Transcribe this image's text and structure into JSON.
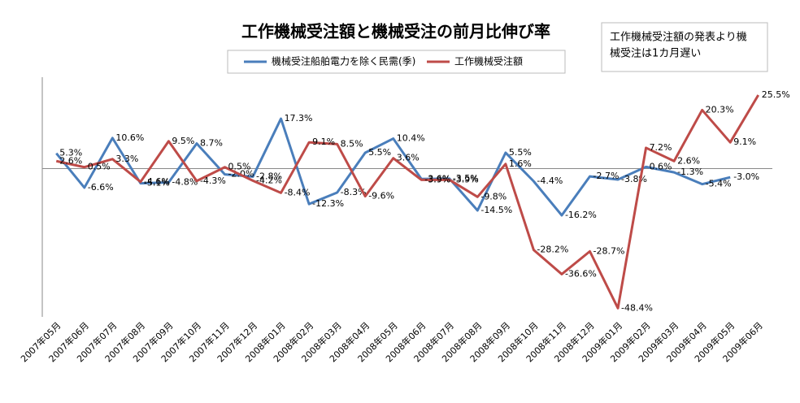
{
  "chart_data": {
    "type": "line",
    "title": "工作機械受注額と機械受注の前月比伸び率",
    "note": [
      "工作機械受注額の発表より機",
      "械受注は1カ月遅い"
    ],
    "categories": [
      "2007年05月",
      "2007年06月",
      "2007年07月",
      "2007年08月",
      "2007年09月",
      "2007年10月",
      "2007年11月",
      "2007年12月",
      "2008年01月",
      "2008年02月",
      "2008年03月",
      "2008年04月",
      "2008年05月",
      "2008年06月",
      "2008年07月",
      "2008年08月",
      "2008年09月",
      "2008年10月",
      "2008年11月",
      "2008年12月",
      "2009年01月",
      "2009年02月",
      "2009年03月",
      "2009年04月",
      "2009年05月",
      "2009年06月"
    ],
    "series": [
      {
        "name": "機械受注船舶電力を除く民需(季)",
        "color": "#4a7ebb",
        "values": [
          5.3,
          -6.6,
          10.6,
          -5.1,
          -4.8,
          8.7,
          -2.0,
          -2.8,
          17.3,
          -12.3,
          -8.3,
          5.5,
          10.4,
          -3.6,
          -3.5,
          -14.5,
          5.5,
          -4.4,
          -16.2,
          -2.7,
          -3.8,
          0.6,
          -1.3,
          -5.4,
          -3.0,
          null
        ],
        "value_labels": [
          "5.3%",
          "-6.6%",
          "10.6%",
          "-5.1%",
          "-4.8%",
          "8.7%",
          "-2.0%",
          "-2.8%",
          "17.3%",
          "-12.3%",
          "-8.3%",
          "5.5%",
          "10.4%",
          "-3.6%",
          "-3.5%",
          "-14.5%",
          "5.5%",
          "-4.4%",
          "-16.2%",
          "-2.7%",
          "-3.8%",
          "0.6%",
          "-1.3%",
          "-5.4%",
          "-3.0%",
          null
        ]
      },
      {
        "name": "工作機械受注額",
        "color": "#be4b48",
        "values": [
          2.6,
          0.5,
          3.3,
          -4.6,
          9.5,
          -4.3,
          0.5,
          -4.2,
          -8.4,
          9.1,
          8.5,
          -9.6,
          3.6,
          -3.9,
          -3.9,
          -9.8,
          1.6,
          -28.2,
          -36.6,
          -28.7,
          -48.4,
          7.2,
          2.6,
          20.3,
          9.1,
          25.5
        ],
        "value_labels": [
          "2.6%",
          "0.5%",
          "3.3%",
          "-4.6%",
          "9.5%",
          "-4.3%",
          "0.5%",
          "-4.2%",
          "-8.4%",
          "9.1%",
          "8.5%",
          "-9.6%",
          "3.6%",
          "-3.9%",
          "-3.9%",
          "-9.8%",
          "1.6%",
          "-28.2%",
          "-36.6%",
          "-28.7%",
          "-48.4%",
          "7.2%",
          "2.6%",
          "20.3%",
          "9.1%",
          "25.5%"
        ]
      }
    ],
    "ylim": [
      -50,
      30
    ],
    "legend": "top"
  }
}
